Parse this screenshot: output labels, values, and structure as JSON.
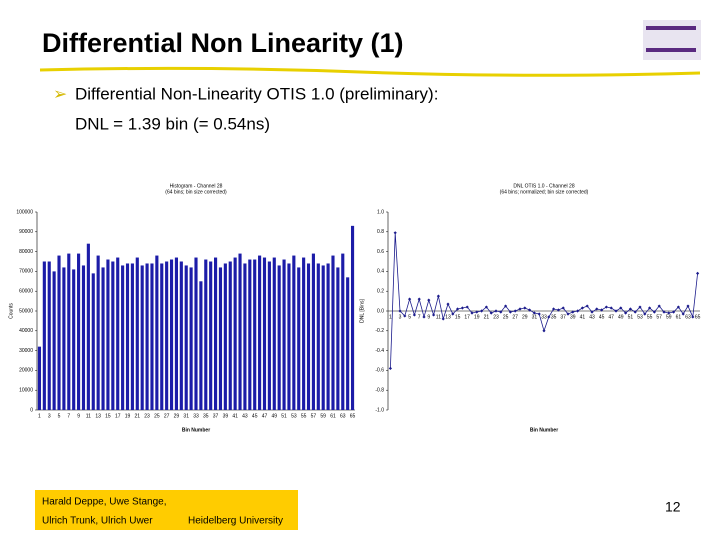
{
  "slide": {
    "title": "Differential Non Linearity (1)",
    "bullet": "Differential Non-Linearity OTIS 1.0 (preliminary):",
    "line2": "DNL = 1.39 bin (= 0.54ns)",
    "footer_authors_1": "Harald Deppe, Uwe Stange,",
    "footer_authors_2": "Ulrich Trunk, Ulrich Uwer",
    "footer_institute": "Heidelberg University",
    "page_number": "12"
  },
  "chart_data": [
    {
      "type": "bar",
      "title": "Histogram - Channel 28",
      "subtitle": "(64 bins; bin size corrected)",
      "x_label": "Bin Number",
      "y_label": "Counts",
      "color": "#1c1ca8",
      "categories": [
        "1",
        null,
        "3",
        null,
        "5",
        null,
        "7",
        null,
        "9",
        null,
        "11",
        null,
        "13",
        null,
        "15",
        null,
        "17",
        null,
        "19",
        null,
        "21",
        null,
        "23",
        null,
        "25",
        null,
        "27",
        null,
        "29",
        null,
        "31",
        null,
        "33",
        null,
        "35",
        null,
        "37",
        null,
        "39",
        null,
        "41",
        null,
        "43",
        null,
        "45",
        null,
        "47",
        null,
        "49",
        null,
        "51",
        null,
        "53",
        null,
        "55",
        null,
        "57",
        null,
        "59",
        null,
        "61",
        null,
        "63",
        null,
        "65"
      ],
      "values": [
        32000,
        75000,
        75000,
        70000,
        78000,
        72000,
        79000,
        71000,
        79000,
        73000,
        84000,
        69000,
        78000,
        72000,
        76000,
        75000,
        77000,
        73000,
        74000,
        74000,
        77000,
        73000,
        74000,
        74000,
        78000,
        74000,
        75000,
        76000,
        77000,
        75000,
        73000,
        72000,
        77000,
        65000,
        76000,
        75000,
        77000,
        72000,
        74000,
        75000,
        77000,
        79000,
        74000,
        76000,
        76000,
        78000,
        77000,
        75000,
        77000,
        73000,
        76000,
        74000,
        78000,
        72000,
        77000,
        74000,
        79000,
        74000,
        73000,
        74000,
        78000,
        72000,
        79000,
        67000,
        93000
      ],
      "ylim": [
        0,
        100000
      ],
      "yticks": [
        0,
        10000,
        20000,
        30000,
        40000,
        50000,
        60000,
        70000,
        80000,
        90000,
        100000
      ]
    },
    {
      "type": "line",
      "title": "DNL OTIS 1.0 - Channel 28",
      "subtitle": "(64 bins; normalized; bin size corrected)",
      "x_label": "Bin Number",
      "y_label": "DNL [Bins]",
      "color": "#1c1c8c",
      "categories": [
        "1",
        null,
        "3",
        null,
        "5",
        null,
        "7",
        null,
        "9",
        null,
        "11",
        null,
        "13",
        null,
        "15",
        null,
        "17",
        null,
        "19",
        null,
        "21",
        null,
        "23",
        null,
        "25",
        null,
        "27",
        null,
        "29",
        null,
        "31",
        null,
        "33",
        null,
        "35",
        null,
        "37",
        null,
        "39",
        null,
        "41",
        null,
        "43",
        null,
        "45",
        null,
        "47",
        null,
        "49",
        null,
        "51",
        null,
        "53",
        null,
        "55",
        null,
        "57",
        null,
        "59",
        null,
        "61",
        null,
        "63",
        null,
        "65"
      ],
      "values": [
        -0.58,
        0.79,
        0.0,
        -0.05,
        0.12,
        -0.04,
        0.12,
        -0.06,
        0.11,
        -0.04,
        0.15,
        -0.08,
        0.07,
        -0.03,
        0.02,
        0.03,
        0.04,
        -0.02,
        -0.01,
        0.0,
        0.04,
        -0.02,
        0.0,
        -0.01,
        0.05,
        -0.01,
        0.0,
        0.02,
        0.03,
        0.01,
        -0.02,
        -0.03,
        -0.2,
        -0.06,
        0.02,
        0.01,
        0.03,
        -0.03,
        -0.01,
        0.0,
        0.03,
        0.05,
        -0.01,
        0.02,
        0.01,
        0.04,
        0.03,
        0.0,
        0.03,
        -0.02,
        0.02,
        -0.01,
        0.04,
        -0.03,
        0.03,
        -0.01,
        0.05,
        -0.01,
        -0.02,
        -0.01,
        0.04,
        -0.03,
        0.05,
        -0.06,
        0.38
      ],
      "ylim": [
        -1,
        1
      ],
      "yticks": [
        {
          "value": -1,
          "label": "-1.0"
        },
        -0.8,
        -0.6,
        -0.4,
        -0.2,
        {
          "value": 0,
          "label": "0.0"
        },
        0.2,
        0.4,
        0.6,
        0.8,
        {
          "value": 1,
          "label": "1.0"
        }
      ]
    }
  ]
}
